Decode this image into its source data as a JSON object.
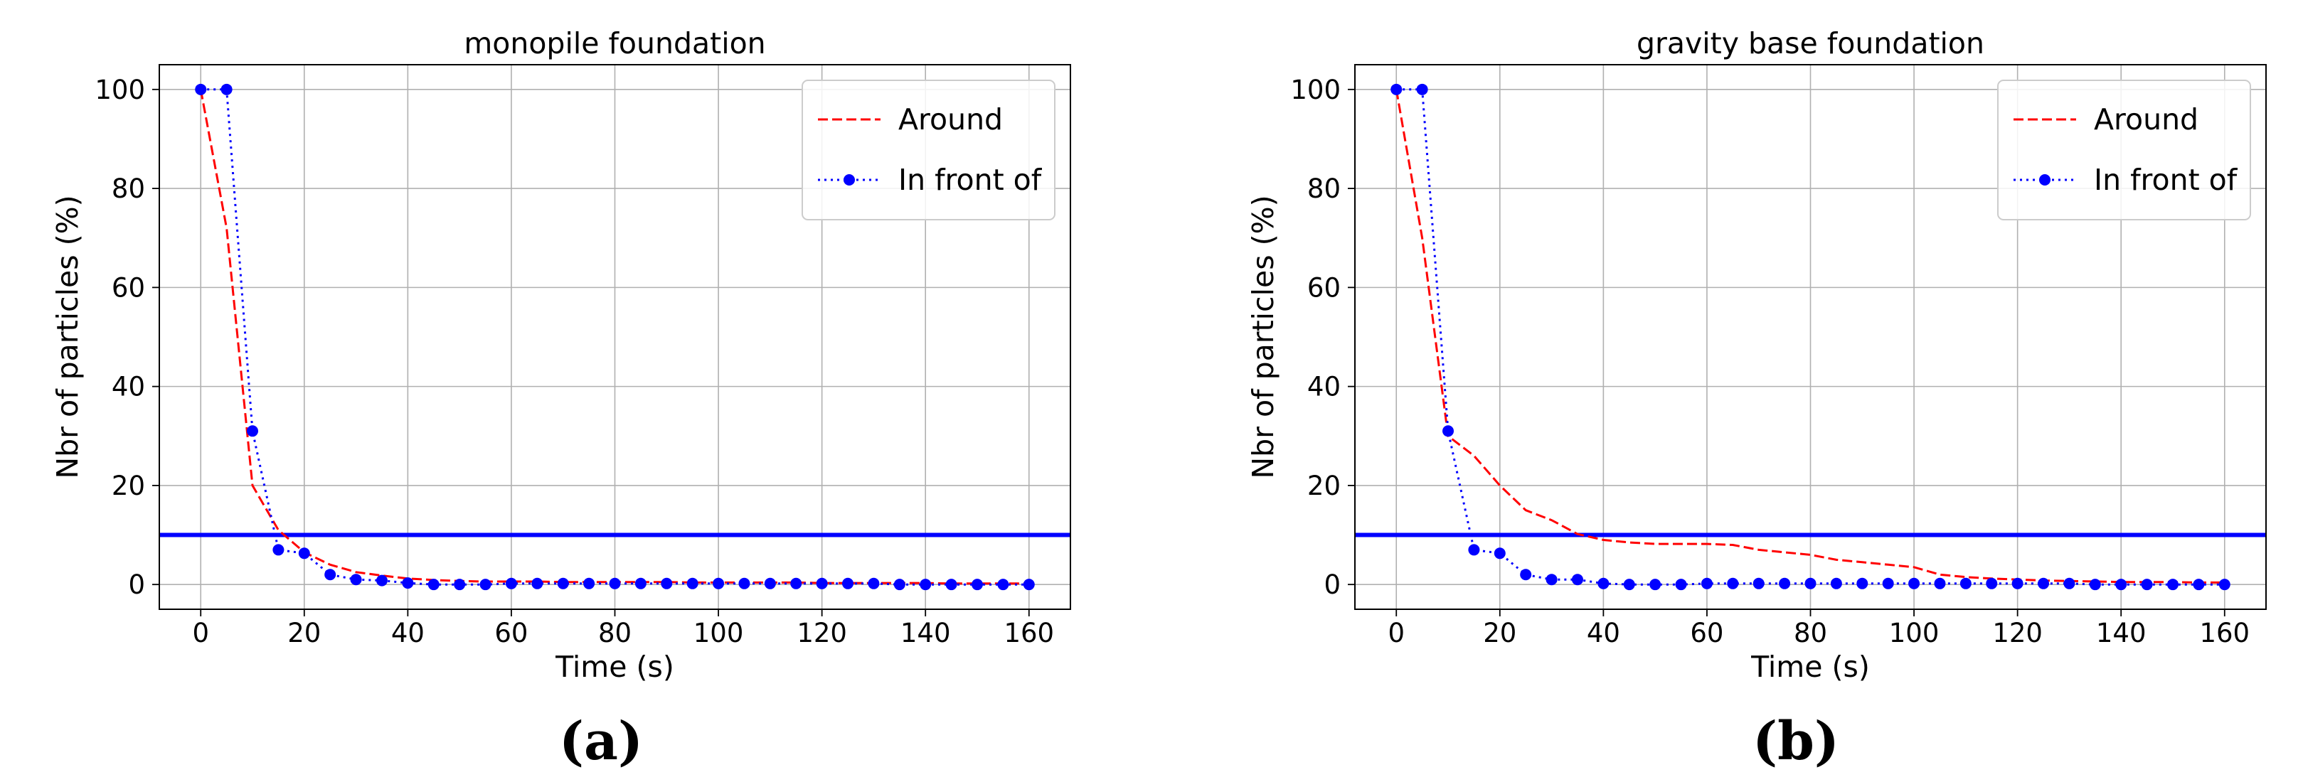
{
  "chart_data": [
    {
      "type": "line",
      "title": "monopile foundation",
      "xlabel": "Time (s)",
      "ylabel": "Nbr of particles (%)",
      "xlim": [
        -8,
        168
      ],
      "ylim": [
        -5,
        105
      ],
      "xticks": [
        0,
        20,
        40,
        60,
        80,
        100,
        120,
        140,
        160
      ],
      "yticks": [
        0,
        20,
        40,
        60,
        80,
        100
      ],
      "grid": true,
      "legend_position": "top-right",
      "threshold": {
        "y": 10,
        "color": "#0000ff"
      },
      "series": [
        {
          "name": "Around",
          "color": "#ff0000",
          "style": "dashed",
          "x": [
            0,
            5,
            10,
            15,
            20,
            25,
            30,
            35,
            40,
            45,
            50,
            55,
            60,
            65,
            70,
            75,
            80,
            85,
            90,
            95,
            100,
            105,
            110,
            115,
            120,
            125,
            130,
            135,
            140,
            145,
            150,
            155,
            160
          ],
          "values": [
            100,
            72,
            20,
            11,
            6.5,
            4,
            2.5,
            1.8,
            1.2,
            0.9,
            0.7,
            0.6,
            0.6,
            0.6,
            0.5,
            0.5,
            0.5,
            0.5,
            0.5,
            0.4,
            0.4,
            0.4,
            0.4,
            0.4,
            0.3,
            0.3,
            0.3,
            0.3,
            0.3,
            0.2,
            0.2,
            0.2,
            0.2
          ]
        },
        {
          "name": "In front of",
          "color": "#0000ff",
          "style": "dotted-markers",
          "x": [
            0,
            5,
            10,
            15,
            20,
            25,
            30,
            35,
            40,
            45,
            50,
            55,
            60,
            65,
            70,
            75,
            80,
            85,
            90,
            95,
            100,
            105,
            110,
            115,
            120,
            125,
            130,
            135,
            140,
            145,
            150,
            155,
            160
          ],
          "values": [
            100,
            100,
            31,
            7,
            6.3,
            2,
            1,
            0.8,
            0.3,
            0,
            0,
            0,
            0.2,
            0.2,
            0.2,
            0.2,
            0.2,
            0.2,
            0.2,
            0.2,
            0.2,
            0.2,
            0.2,
            0.2,
            0.2,
            0.2,
            0.2,
            0,
            0,
            0,
            0,
            0,
            0
          ]
        }
      ],
      "caption": "(a)"
    },
    {
      "type": "line",
      "title": "gravity base foundation",
      "xlabel": "Time (s)",
      "ylabel": "Nbr of particles (%)",
      "xlim": [
        -8,
        168
      ],
      "ylim": [
        -5,
        105
      ],
      "xticks": [
        0,
        20,
        40,
        60,
        80,
        100,
        120,
        140,
        160
      ],
      "yticks": [
        0,
        20,
        40,
        60,
        80,
        100
      ],
      "grid": true,
      "legend_position": "top-right",
      "threshold": {
        "y": 10,
        "color": "#0000ff"
      },
      "series": [
        {
          "name": "Around",
          "color": "#ff0000",
          "style": "dashed",
          "x": [
            0,
            5,
            10,
            15,
            20,
            25,
            30,
            35,
            40,
            45,
            50,
            55,
            60,
            65,
            70,
            75,
            80,
            85,
            90,
            95,
            100,
            105,
            110,
            115,
            120,
            125,
            130,
            135,
            140,
            145,
            150,
            155,
            160
          ],
          "values": [
            100,
            70,
            30,
            26,
            20,
            15,
            13,
            10.2,
            9,
            8.5,
            8.2,
            8.2,
            8.2,
            8,
            7,
            6.5,
            6,
            5,
            4.5,
            4,
            3.5,
            2,
            1.5,
            1.2,
            1,
            0.8,
            0.7,
            0.6,
            0.5,
            0.5,
            0.5,
            0.4,
            0.4
          ]
        },
        {
          "name": "In front of",
          "color": "#0000ff",
          "style": "dotted-markers",
          "x": [
            0,
            5,
            10,
            15,
            20,
            25,
            30,
            35,
            40,
            45,
            50,
            55,
            60,
            65,
            70,
            75,
            80,
            85,
            90,
            95,
            100,
            105,
            110,
            115,
            120,
            125,
            130,
            135,
            140,
            145,
            150,
            155,
            160
          ],
          "values": [
            100,
            100,
            31,
            7,
            6.3,
            2,
            1,
            1,
            0.2,
            0,
            0,
            0,
            0.2,
            0.2,
            0.2,
            0.2,
            0.2,
            0.2,
            0.2,
            0.2,
            0.2,
            0.2,
            0.2,
            0.2,
            0.2,
            0.2,
            0.2,
            0,
            0,
            0,
            0,
            0,
            0
          ]
        }
      ],
      "caption": "(b)"
    }
  ]
}
